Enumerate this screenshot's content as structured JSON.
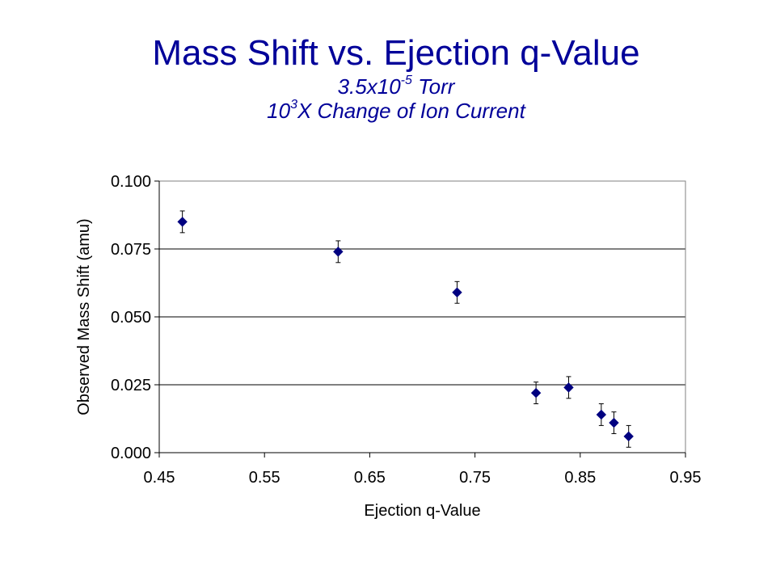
{
  "title": {
    "main": "Mass Shift vs. Ejection q-Value",
    "sub1_base": "3.5x10",
    "sub1_exp": "-5",
    "sub1_tail": " Torr",
    "sub2_base": "10",
    "sub2_exp": "3",
    "sub2_tail": "X Change of Ion Current",
    "color": "#000099"
  },
  "chart_data": {
    "type": "scatter",
    "xlabel": "Ejection q-Value",
    "ylabel": "Observed Mass Shift (amu)",
    "xlim": [
      0.45,
      0.95
    ],
    "ylim": [
      0.0,
      0.1
    ],
    "x_ticks": [
      "0.45",
      "0.55",
      "0.65",
      "0.75",
      "0.85",
      "0.95"
    ],
    "y_ticks": [
      "0.000",
      "0.025",
      "0.050",
      "0.075",
      "0.100"
    ],
    "grid": "horizontal",
    "marker": "diamond",
    "marker_color": "#000080",
    "error_bar_color": "#000000",
    "series": [
      {
        "points": [
          {
            "x": 0.472,
            "y": 0.085,
            "err": 0.004
          },
          {
            "x": 0.62,
            "y": 0.074,
            "err": 0.004
          },
          {
            "x": 0.733,
            "y": 0.059,
            "err": 0.004
          },
          {
            "x": 0.808,
            "y": 0.022,
            "err": 0.004
          },
          {
            "x": 0.839,
            "y": 0.024,
            "err": 0.004
          },
          {
            "x": 0.87,
            "y": 0.014,
            "err": 0.004
          },
          {
            "x": 0.882,
            "y": 0.011,
            "err": 0.004
          },
          {
            "x": 0.896,
            "y": 0.006,
            "err": 0.004
          }
        ]
      }
    ]
  }
}
